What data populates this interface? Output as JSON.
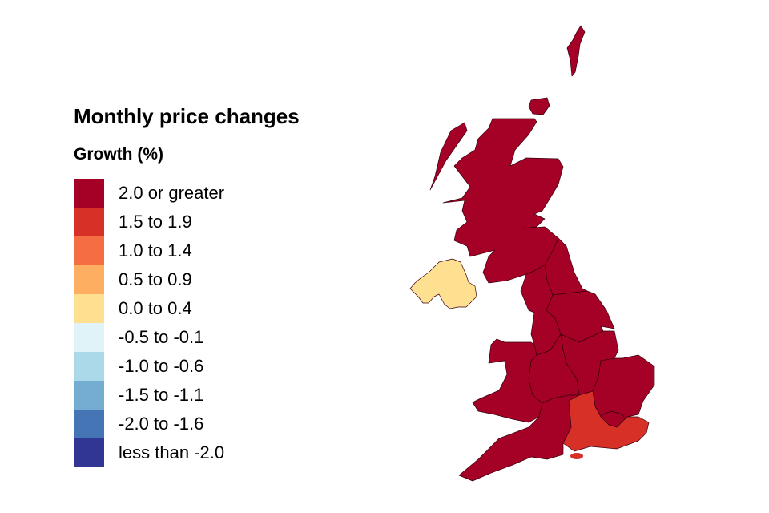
{
  "legend": {
    "title": "Monthly price changes",
    "subtitle": "Growth (%)",
    "items": [
      {
        "label": "2.0 or greater",
        "color": "#a50026"
      },
      {
        "label": "1.5 to 1.9",
        "color": "#d73027"
      },
      {
        "label": "1.0 to 1.4",
        "color": "#f46d43"
      },
      {
        "label": "0.5 to 0.9",
        "color": "#fdae61"
      },
      {
        "label": "0.0 to 0.4",
        "color": "#fee090"
      },
      {
        "label": "-0.5 to -0.1",
        "color": "#e0f3f8"
      },
      {
        "label": "-1.0 to -0.6",
        "color": "#abd9e9"
      },
      {
        "label": "-1.5 to -1.1",
        "color": "#74add1"
      },
      {
        "label": "-2.0 to -1.6",
        "color": "#4575b4"
      },
      {
        "label": "less than -2.0",
        "color": "#313695"
      }
    ]
  },
  "regions": [
    {
      "id": "scotland",
      "category": "2.0 or greater",
      "color": "#a50026"
    },
    {
      "id": "north-east",
      "category": "2.0 or greater",
      "color": "#a50026"
    },
    {
      "id": "north-west",
      "category": "2.0 or greater",
      "color": "#a50026"
    },
    {
      "id": "yorkshire-and-the-humber",
      "category": "2.0 or greater",
      "color": "#a50026"
    },
    {
      "id": "east-midlands",
      "category": "2.0 or greater",
      "color": "#a50026"
    },
    {
      "id": "west-midlands",
      "category": "2.0 or greater",
      "color": "#a50026"
    },
    {
      "id": "wales",
      "category": "2.0 or greater",
      "color": "#a50026"
    },
    {
      "id": "east-of-england",
      "category": "2.0 or greater",
      "color": "#a50026"
    },
    {
      "id": "london",
      "category": "2.0 or greater",
      "color": "#a50026"
    },
    {
      "id": "south-east",
      "category": "1.5 to 1.9",
      "color": "#d73027"
    },
    {
      "id": "south-west",
      "category": "2.0 or greater",
      "color": "#a50026"
    },
    {
      "id": "northern-ireland",
      "category": "0.0 to 0.4",
      "color": "#fee090"
    }
  ]
}
